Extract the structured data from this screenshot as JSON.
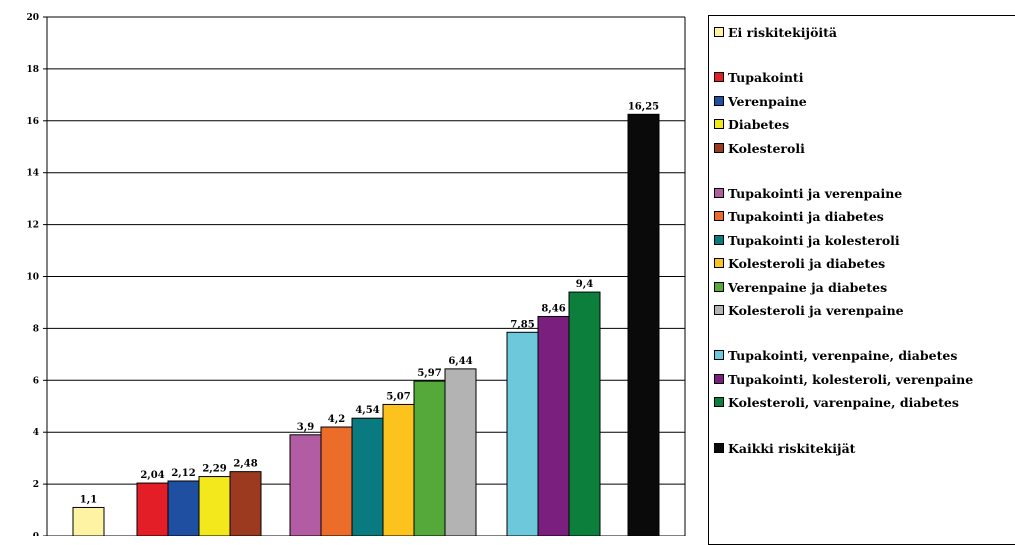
{
  "chart_data": {
    "type": "bar",
    "title": "",
    "xlabel": "",
    "ylabel": "",
    "ylim": [
      0,
      20
    ],
    "y_ticks": [
      "0",
      "2",
      "4",
      "6",
      "8",
      "10",
      "12",
      "14",
      "16",
      "18",
      "20"
    ],
    "grid": true,
    "legend_position": "right",
    "groups": [
      {
        "bars": [
          {
            "name": "Ei riskitekijöitä",
            "value": 1.1,
            "label": "1,1",
            "color": "#fdf3a2"
          }
        ]
      },
      {
        "bars": [
          {
            "name": "Tupakointi",
            "value": 2.04,
            "label": "2,04",
            "color": "#e31e27"
          },
          {
            "name": "Verenpaine",
            "value": 2.12,
            "label": "2,12",
            "color": "#1f4fa0"
          },
          {
            "name": "Diabetes",
            "value": 2.29,
            "label": "2,29",
            "color": "#f2e81c"
          },
          {
            "name": "Kolesteroli",
            "value": 2.48,
            "label": "2,48",
            "color": "#9c3a20"
          }
        ]
      },
      {
        "bars": [
          {
            "name": "Tupakointi ja verenpaine",
            "value": 3.9,
            "label": "3,9",
            "color": "#b25ca4"
          },
          {
            "name": "Tupakointi ja diabetes",
            "value": 4.2,
            "label": "4,2",
            "color": "#ec6d2a"
          },
          {
            "name": "Tupakointi ja kolesteroli",
            "value": 4.54,
            "label": "4,54",
            "color": "#087a80"
          },
          {
            "name": "Kolesteroli ja diabetes",
            "value": 5.07,
            "label": "5,07",
            "color": "#fcc21d"
          },
          {
            "name": "Verenpaine ja diabetes",
            "value": 5.97,
            "label": "5,97",
            "color": "#55a93a"
          },
          {
            "name": "Kolesteroli ja verenpaine",
            "value": 6.44,
            "label": "6,44",
            "color": "#b3b3b3"
          }
        ]
      },
      {
        "bars": [
          {
            "name": "Tupakointi, verenpaine, diabetes",
            "value": 7.85,
            "label": "7,85",
            "color": "#6ec8dc"
          },
          {
            "name": "Tupakointi, kolesteroli, verenpaine",
            "value": 8.46,
            "label": "8,46",
            "color": "#7a1f7e"
          },
          {
            "name": "Kolesteroli, varenpaine, diabetes",
            "value": 9.4,
            "label": "9,4",
            "color": "#0d7f3c"
          }
        ]
      },
      {
        "bars": [
          {
            "name": "Kaikki riskitekijät",
            "value": 16.25,
            "label": "16,25",
            "color": "#0a0a0a"
          }
        ]
      }
    ]
  }
}
